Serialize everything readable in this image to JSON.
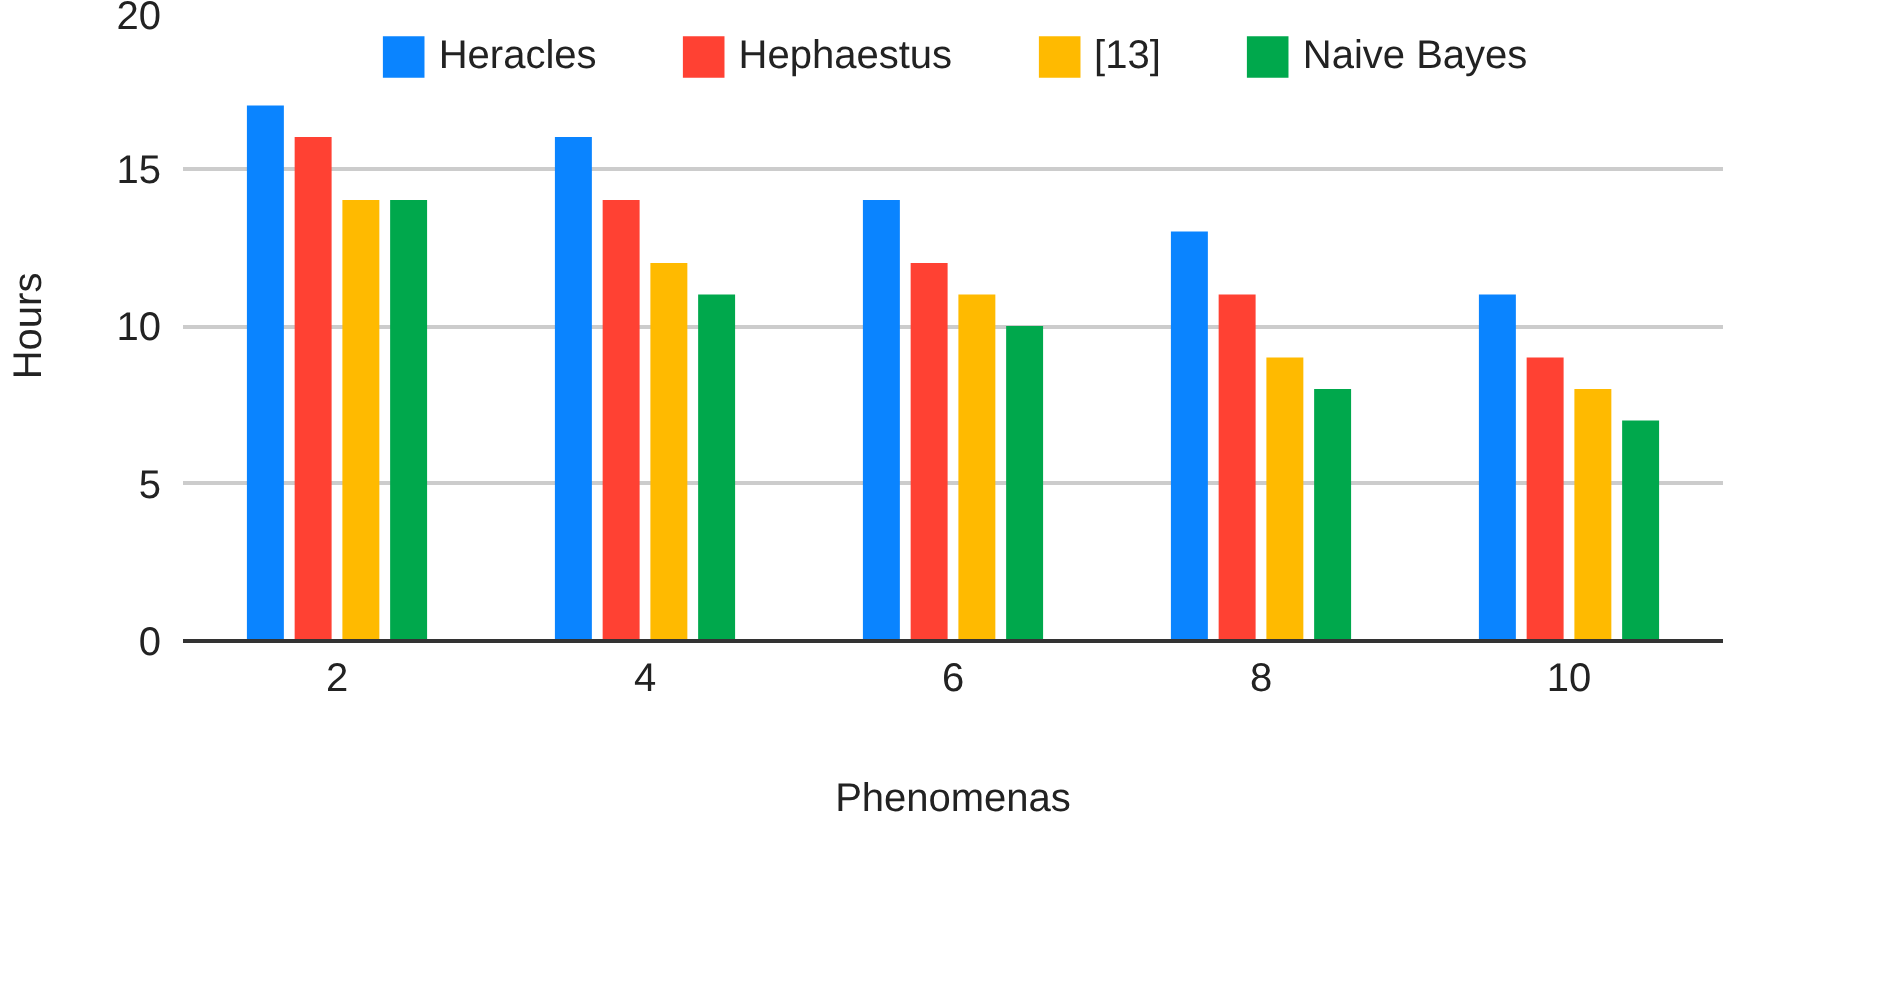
{
  "chart_data": {
    "type": "bar",
    "xlabel": "Phenomenas",
    "ylabel": "Hours",
    "categories": [
      "2",
      "4",
      "6",
      "8",
      "10"
    ],
    "series": [
      {
        "name": "Heracles",
        "color": "#0a84ff",
        "values": [
          17,
          16,
          14,
          13,
          11
        ]
      },
      {
        "name": "Hephaestus",
        "color": "#ff4133",
        "values": [
          16,
          14,
          12,
          11,
          9
        ]
      },
      {
        "name": "[13]",
        "color": "#ffba00",
        "values": [
          14,
          12,
          11,
          9,
          8
        ]
      },
      {
        "name": "Naive Bayes",
        "color": "#00a84c",
        "values": [
          14,
          11,
          10,
          8,
          7
        ]
      }
    ],
    "ylim": [
      0,
      20
    ],
    "yticks": [
      0,
      5,
      10,
      15,
      20
    ],
    "grid": "y",
    "legend": "top"
  }
}
